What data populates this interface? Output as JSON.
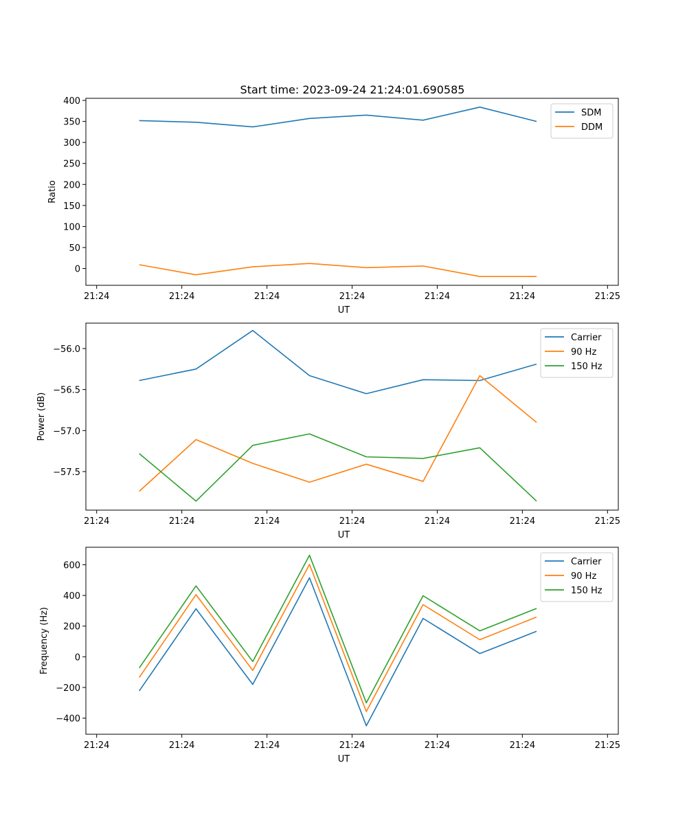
{
  "figure": {
    "title": "Start time: 2023-09-24 21:24:01.690585"
  },
  "chart_data": [
    {
      "type": "line",
      "title": "Start time: 2023-09-24 21:24:01.690585",
      "xlabel": "UT",
      "ylabel": "Ratio",
      "x_tick_labels": [
        "21:24",
        "21:24",
        "21:24",
        "21:24",
        "21:24",
        "21:24",
        "21:25"
      ],
      "xlim": [
        -0.19,
        9.19
      ],
      "x": [
        0.75,
        1.75,
        2.75,
        3.75,
        4.75,
        5.75,
        6.75,
        7.75
      ],
      "yticks": [
        0,
        50,
        100,
        150,
        200,
        250,
        300,
        350,
        400
      ],
      "ylim": [
        -40,
        405
      ],
      "legend": "top-right",
      "series": [
        {
          "name": "SDM",
          "color": "#1f77b4",
          "values": [
            352,
            348,
            337,
            357,
            365,
            353,
            384,
            350
          ]
        },
        {
          "name": "DDM",
          "color": "#ff7f0e",
          "values": [
            9,
            -15,
            4,
            12,
            2,
            6,
            -19,
            -19
          ]
        }
      ]
    },
    {
      "type": "line",
      "title": "",
      "xlabel": "UT",
      "ylabel": "Power (dB)",
      "x_tick_labels": [
        "21:24",
        "21:24",
        "21:24",
        "21:24",
        "21:24",
        "21:24",
        "21:25"
      ],
      "xlim": [
        -0.19,
        9.19
      ],
      "x": [
        0.75,
        1.75,
        2.75,
        3.75,
        4.75,
        5.75,
        6.75,
        7.75
      ],
      "yticks": [
        -57.5,
        -57.0,
        -56.5,
        -56.0
      ],
      "ytick_labels": [
        "−57.5",
        "−57.0",
        "−56.5",
        "−56.0"
      ],
      "ylim": [
        -57.97,
        -55.69
      ],
      "legend": "top-right",
      "series": [
        {
          "name": "Carrier",
          "color": "#1f77b4",
          "values": [
            -56.39,
            -56.25,
            -55.78,
            -56.33,
            -56.55,
            -56.38,
            -56.39,
            -56.19
          ]
        },
        {
          "name": "90 Hz",
          "color": "#ff7f0e",
          "values": [
            -57.74,
            -57.11,
            -57.4,
            -57.63,
            -57.41,
            -57.62,
            -56.33,
            -56.9
          ]
        },
        {
          "name": "150 Hz",
          "color": "#2ca02c",
          "values": [
            -57.28,
            -57.86,
            -57.18,
            -57.04,
            -57.32,
            -57.34,
            -57.21,
            -57.86
          ]
        }
      ]
    },
    {
      "type": "line",
      "title": "",
      "xlabel": "UT",
      "ylabel": "Frequency (Hz)",
      "x_tick_labels": [
        "21:24",
        "21:24",
        "21:24",
        "21:24",
        "21:24",
        "21:24",
        "21:25"
      ],
      "xlim": [
        -0.19,
        9.19
      ],
      "x": [
        0.75,
        1.75,
        2.75,
        3.75,
        4.75,
        5.75,
        6.75,
        7.75
      ],
      "yticks": [
        -400,
        -200,
        0,
        200,
        400,
        600
      ],
      "ytick_labels": [
        "−400",
        "−200",
        "0",
        "200",
        "400",
        "600"
      ],
      "ylim": [
        -505,
        714
      ],
      "legend": "top-right",
      "series": [
        {
          "name": "Carrier",
          "color": "#1f77b4",
          "values": [
            -222,
            313,
            -180,
            515,
            -450,
            250,
            21,
            166
          ]
        },
        {
          "name": "90 Hz",
          "color": "#ff7f0e",
          "values": [
            -135,
            405,
            -89,
            602,
            -357,
            340,
            111,
            259
          ]
        },
        {
          "name": "150 Hz",
          "color": "#2ca02c",
          "values": [
            -73,
            462,
            -31,
            662,
            -300,
            398,
            169,
            315
          ]
        }
      ]
    }
  ]
}
